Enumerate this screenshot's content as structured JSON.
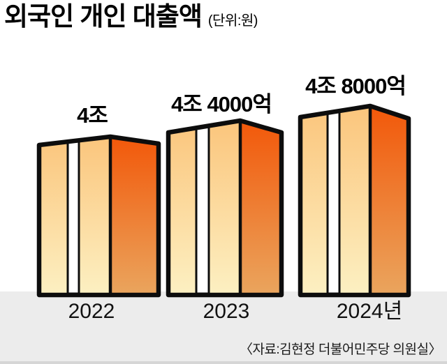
{
  "title": "외국인 개인 대출액",
  "unit_label": "(단위:원)",
  "source": "〈자료:김현정 더불어민주당 의원실〉",
  "chart_data": {
    "type": "bar",
    "title": "외국인 개인 대출액",
    "unit": "원",
    "categories": [
      "2022",
      "2023",
      "2024년"
    ],
    "values_trillion_krw": [
      4.0,
      4.4,
      4.8
    ],
    "value_labels": [
      "4조",
      "4조 4000억",
      "4조 8000억"
    ],
    "series": [
      {
        "name": "외국인 개인 대출액",
        "values": [
          4.0,
          4.4,
          4.8
        ]
      }
    ],
    "axis": "none",
    "grid": false,
    "legend_position": "none",
    "bar_style": "3d-building-pictogram"
  },
  "colors": {
    "background": "#FFFFFF",
    "footer_band": "#ECECEC",
    "bar_front_top": "#FBC57C",
    "bar_front_bottom": "#FCF0C2",
    "bar_side_top": "#F2580A",
    "bar_side_bottom": "#EAA55E",
    "stripe": "#FFFFFF",
    "outline": "#0D0D0D",
    "text": "#000000"
  }
}
